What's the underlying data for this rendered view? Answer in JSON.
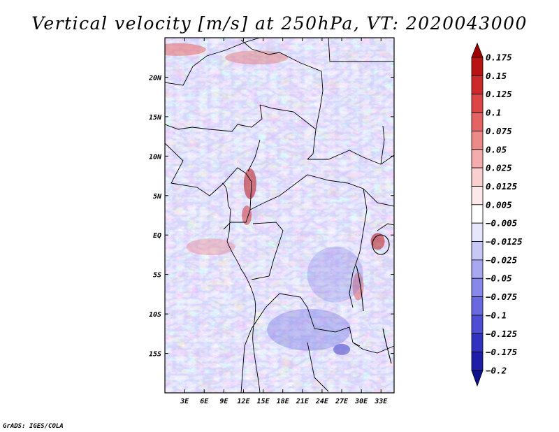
{
  "chart_data": {
    "type": "heatmap",
    "title": "Vertical velocity [m/s] at 250hPa, VT: 2020043000",
    "variable": "Vertical velocity",
    "units": "m/s",
    "level": "250hPa",
    "valid_time": "2020043000",
    "x_axis": {
      "label": "",
      "range": [
        0,
        35
      ],
      "ticks": [
        3,
        6,
        9,
        12,
        15,
        18,
        21,
        24,
        27,
        30,
        33
      ],
      "tick_labels": [
        "3E",
        "6E",
        "9E",
        "12E",
        "15E",
        "18E",
        "21E",
        "24E",
        "27E",
        "30E",
        "33E"
      ]
    },
    "y_axis": {
      "label": "",
      "range": [
        -20,
        25
      ],
      "ticks": [
        20,
        15,
        10,
        5,
        0,
        -5,
        -10,
        -15
      ],
      "tick_labels": [
        "20N",
        "15N",
        "10N",
        "5N",
        "EQ",
        "5S",
        "10S",
        "15S"
      ]
    },
    "colorbar": {
      "levels": [
        0.175,
        0.15,
        0.125,
        0.1,
        0.075,
        0.05,
        0.025,
        0.0125,
        0.005,
        -0.005,
        -0.0125,
        -0.025,
        -0.05,
        -0.075,
        -0.1,
        -0.125,
        -0.175,
        -0.2
      ],
      "labels": [
        "0.175",
        "0.15",
        "0.125",
        "0.1",
        "0.075",
        "0.05",
        "0.025",
        "0.0125",
        "0.005",
        "−0.005",
        "−0.0125",
        "−0.025",
        "−0.05",
        "−0.075",
        "−0.1",
        "−0.125",
        "−0.175",
        "−0.2"
      ],
      "colors": [
        "#a00000",
        "#b81414",
        "#cc2a2a",
        "#dc4646",
        "#e46464",
        "#ec8a8a",
        "#f4acac",
        "#f9cfcf",
        "#fde9e9",
        "#ffffff",
        "#e6e6fc",
        "#c8c8f7",
        "#a8a8f1",
        "#8888ea",
        "#6a6ae0",
        "#4e4ed4",
        "#3232c2",
        "#1e1ea8",
        "#10108c"
      ],
      "extend": "both"
    },
    "field": {
      "dominant_sign": "negative",
      "positive_regions": [
        "northern Sahara 22N-25N",
        "Cameroon highlands 4N-8N 12E-14E",
        "Lake Victoria 0-2S 32E-33E",
        "Gulf of Guinea 0-3S 5E-11E",
        "Lake Tanganyika 5S-8S 29E-31E"
      ]
    }
  },
  "credit": "GrADS: IGES/COLA"
}
